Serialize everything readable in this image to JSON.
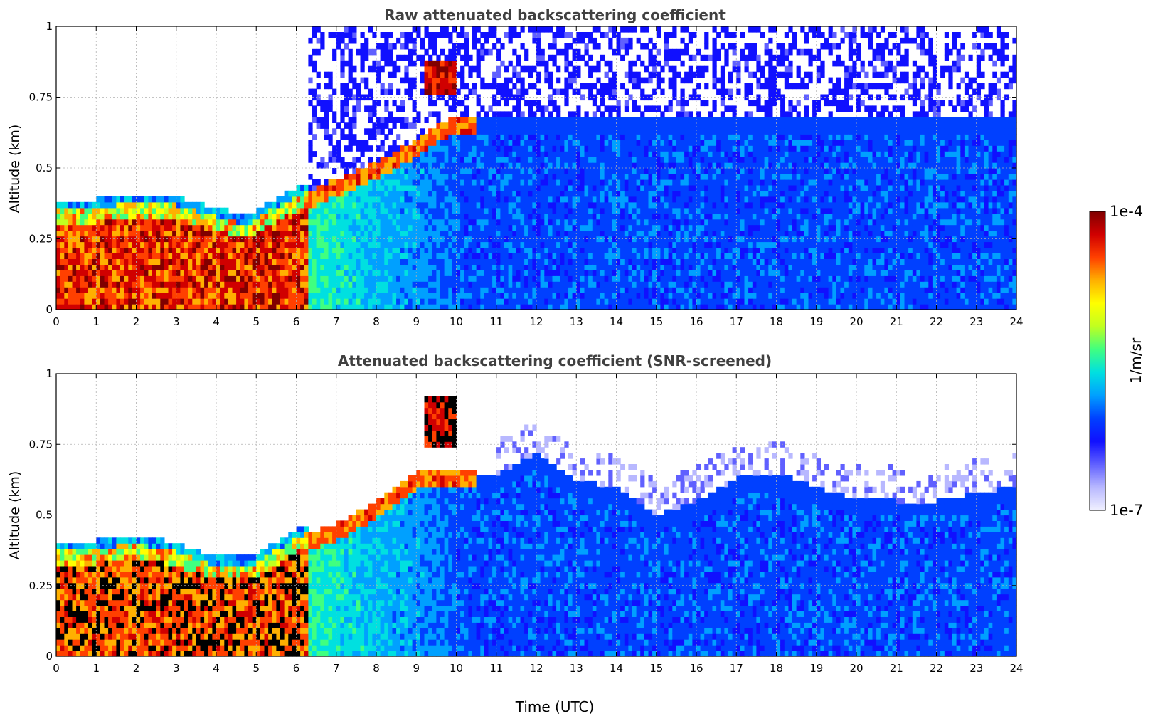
{
  "chart_data": [
    {
      "type": "heatmap",
      "title": "Raw attenuated backscattering coefficient",
      "ylabel": "Altitude (km)",
      "xlabel": "",
      "xlim": [
        0,
        24
      ],
      "ylim": [
        0,
        1
      ],
      "x_ticks": [
        "0",
        "1",
        "2",
        "3",
        "4",
        "5",
        "6",
        "7",
        "8",
        "9",
        "10",
        "11",
        "12",
        "13",
        "14",
        "15",
        "16",
        "17",
        "18",
        "19",
        "20",
        "21",
        "22",
        "23",
        "24"
      ],
      "y_ticks": [
        {
          "v": 0,
          "label": "0"
        },
        {
          "v": 0.25,
          "label": "0.25"
        },
        {
          "v": 0.5,
          "label": "0.5"
        },
        {
          "v": 0.75,
          "label": "0.75"
        },
        {
          "v": 1,
          "label": "1"
        }
      ],
      "grid": true,
      "screened": false,
      "boundary_layer_top_km": [
        [
          0,
          0.36
        ],
        [
          1,
          0.36
        ],
        [
          2,
          0.38
        ],
        [
          2.5,
          0.38
        ],
        [
          3,
          0.37
        ],
        [
          4,
          0.33
        ],
        [
          4.8,
          0.3
        ],
        [
          5.2,
          0.34
        ],
        [
          6,
          0.4
        ],
        [
          7,
          0.46
        ],
        [
          8,
          0.52
        ],
        [
          9,
          0.6
        ],
        [
          9.5,
          0.65
        ],
        [
          10,
          0.68
        ]
      ],
      "cloud_patch": {
        "time_from": 9.2,
        "time_to": 10.0,
        "alt_from": 0.77,
        "alt_to": 0.88
      }
    },
    {
      "type": "heatmap",
      "title": "Attenuated backscattering coefficient (SNR-screened)",
      "ylabel": "Altitude (km)",
      "xlabel": "Time (UTC)",
      "xlim": [
        0,
        24
      ],
      "ylim": [
        0,
        1
      ],
      "x_ticks": [
        "0",
        "1",
        "2",
        "3",
        "4",
        "5",
        "6",
        "7",
        "8",
        "9",
        "10",
        "11",
        "12",
        "13",
        "14",
        "15",
        "16",
        "17",
        "18",
        "19",
        "20",
        "21",
        "22",
        "23",
        "24"
      ],
      "y_ticks": [
        {
          "v": 0,
          "label": "0"
        },
        {
          "v": 0.25,
          "label": "0.25"
        },
        {
          "v": 0.5,
          "label": "0.5"
        },
        {
          "v": 0.75,
          "label": "0.75"
        },
        {
          "v": 1,
          "label": "1"
        }
      ],
      "grid": true,
      "screened": true,
      "boundary_layer_top_km": [
        [
          0,
          0.38
        ],
        [
          1,
          0.38
        ],
        [
          2,
          0.4
        ],
        [
          3,
          0.37
        ],
        [
          4,
          0.32
        ],
        [
          5,
          0.33
        ],
        [
          6,
          0.42
        ],
        [
          7,
          0.47
        ],
        [
          8,
          0.55
        ],
        [
          9,
          0.65
        ],
        [
          10,
          0.66
        ],
        [
          11,
          0.64
        ],
        [
          12,
          0.72
        ],
        [
          13,
          0.62
        ],
        [
          14,
          0.6
        ],
        [
          15,
          0.5
        ],
        [
          16,
          0.55
        ],
        [
          17,
          0.63
        ],
        [
          18,
          0.65
        ],
        [
          19,
          0.6
        ],
        [
          20,
          0.56
        ],
        [
          21,
          0.55
        ],
        [
          22,
          0.55
        ],
        [
          23,
          0.58
        ],
        [
          24,
          0.6
        ]
      ],
      "cloud_patch": {
        "time_from": 9.2,
        "time_to": 10.0,
        "alt_from": 0.75,
        "alt_to": 0.92
      }
    }
  ],
  "colorbar": {
    "max_label": "1e-4",
    "min_label": "1e-7",
    "label": "1/m/sr",
    "scale": "log",
    "colormap": [
      "#f0f0ff",
      "#b8b8ff",
      "#6060ff",
      "#1010ff",
      "#0040ff",
      "#00a0ff",
      "#00e0e0",
      "#40ff80",
      "#c0ff20",
      "#ffff00",
      "#ffb000",
      "#ff4000",
      "#d00000",
      "#800000"
    ]
  }
}
